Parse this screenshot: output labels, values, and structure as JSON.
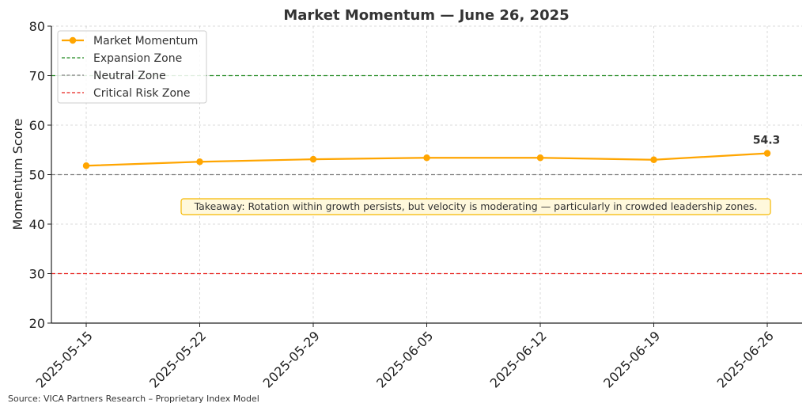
{
  "chart_data": {
    "type": "line",
    "title": "Market Momentum — June 26, 2025",
    "xlabel": "",
    "ylabel": "Momentum Score",
    "categories": [
      "2025-05-15",
      "2025-05-22",
      "2025-05-29",
      "2025-06-05",
      "2025-06-12",
      "2025-06-19",
      "2025-06-26"
    ],
    "series": [
      {
        "name": "Market Momentum",
        "values": [
          51.8,
          52.6,
          53.1,
          53.4,
          53.4,
          53.0,
          54.3
        ],
        "color": "#FFA500",
        "marker": "circle"
      }
    ],
    "reference_lines": [
      {
        "name": "Expansion Zone",
        "value": 70,
        "color": "#228B22",
        "style": "dashed"
      },
      {
        "name": "Neutral Zone",
        "value": 50,
        "color": "#808080",
        "style": "dashed"
      },
      {
        "name": "Critical Risk Zone",
        "value": 30,
        "color": "#E8231F",
        "style": "dashed"
      }
    ],
    "ylim": [
      20,
      80
    ],
    "yticks": [
      20,
      30,
      40,
      50,
      60,
      70,
      80
    ],
    "grid": true,
    "legend_position": "top-left",
    "last_value_label": "54.3",
    "annotation": "Takeaway: Rotation within growth persists, but velocity is moderating — particularly in crowded leadership zones.",
    "annotation_style": {
      "fill": "#FFF8DC",
      "stroke": "#F5B800"
    }
  },
  "footer": {
    "source": "Source: VICA Partners Research – Proprietary Index Model"
  }
}
